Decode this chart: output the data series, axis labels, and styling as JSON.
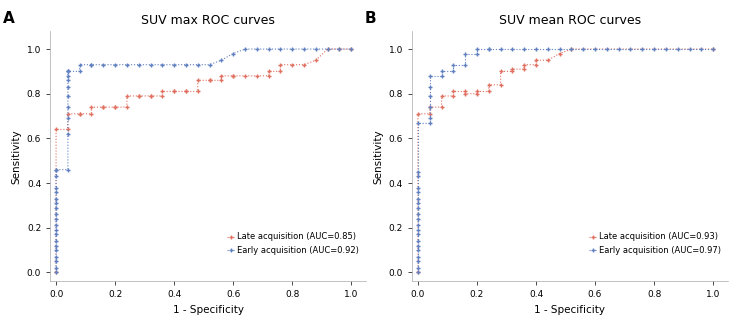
{
  "panel_A": {
    "title": "SUV max ROC curves",
    "label": "A",
    "late_label": "Late acquisition (AUC=0.85)",
    "early_label": "Early acquisition (AUC=0.92)",
    "late_color": "#E07060",
    "early_color": "#6080C0",
    "late_fpr": [
      0.0,
      0.0,
      0.04,
      0.04,
      0.08,
      0.08,
      0.12,
      0.12,
      0.16,
      0.16,
      0.2,
      0.2,
      0.24,
      0.24,
      0.28,
      0.28,
      0.32,
      0.32,
      0.36,
      0.36,
      0.4,
      0.4,
      0.44,
      0.44,
      0.48,
      0.48,
      0.52,
      0.52,
      0.56,
      0.56,
      0.6,
      0.6,
      0.64,
      0.68,
      0.72,
      0.72,
      0.76,
      0.76,
      0.8,
      0.84,
      0.88,
      0.92,
      0.96,
      1.0
    ],
    "late_tpr": [
      0.0,
      0.64,
      0.64,
      0.71,
      0.71,
      0.71,
      0.71,
      0.74,
      0.74,
      0.74,
      0.74,
      0.74,
      0.74,
      0.79,
      0.79,
      0.79,
      0.79,
      0.79,
      0.79,
      0.81,
      0.81,
      0.81,
      0.81,
      0.81,
      0.81,
      0.86,
      0.86,
      0.86,
      0.86,
      0.88,
      0.88,
      0.88,
      0.88,
      0.88,
      0.88,
      0.9,
      0.9,
      0.93,
      0.93,
      0.93,
      0.95,
      1.0,
      1.0,
      1.0
    ],
    "early_fpr": [
      0.0,
      0.0,
      0.0,
      0.0,
      0.0,
      0.0,
      0.0,
      0.0,
      0.0,
      0.0,
      0.0,
      0.0,
      0.0,
      0.0,
      0.0,
      0.0,
      0.0,
      0.0,
      0.0,
      0.0,
      0.04,
      0.04,
      0.04,
      0.04,
      0.04,
      0.04,
      0.04,
      0.04,
      0.04,
      0.04,
      0.04,
      0.08,
      0.08,
      0.12,
      0.12,
      0.16,
      0.2,
      0.24,
      0.28,
      0.32,
      0.36,
      0.4,
      0.44,
      0.48,
      0.52,
      0.56,
      0.6,
      0.64,
      0.68,
      0.72,
      0.76,
      0.8,
      0.84,
      0.88,
      0.92,
      0.96,
      1.0
    ],
    "early_tpr": [
      0.0,
      0.02,
      0.05,
      0.07,
      0.1,
      0.12,
      0.14,
      0.17,
      0.19,
      0.21,
      0.24,
      0.26,
      0.29,
      0.31,
      0.33,
      0.36,
      0.38,
      0.43,
      0.46,
      0.46,
      0.46,
      0.62,
      0.69,
      0.74,
      0.79,
      0.83,
      0.86,
      0.88,
      0.9,
      0.9,
      0.9,
      0.9,
      0.93,
      0.93,
      0.93,
      0.93,
      0.93,
      0.93,
      0.93,
      0.93,
      0.93,
      0.93,
      0.93,
      0.93,
      0.93,
      0.95,
      0.98,
      1.0,
      1.0,
      1.0,
      1.0,
      1.0,
      1.0,
      1.0,
      1.0,
      1.0,
      1.0
    ]
  },
  "panel_B": {
    "title": "SUV mean ROC curves",
    "label": "B",
    "late_label": "Late acquisition (AUC=0.93)",
    "early_label": "Early acquisition (AUC=0.97)",
    "late_color": "#E07060",
    "early_color": "#6080C0",
    "late_fpr": [
      0.0,
      0.0,
      0.04,
      0.04,
      0.08,
      0.08,
      0.12,
      0.12,
      0.16,
      0.16,
      0.2,
      0.2,
      0.24,
      0.24,
      0.28,
      0.28,
      0.32,
      0.32,
      0.36,
      0.36,
      0.4,
      0.4,
      0.44,
      0.48,
      0.52,
      1.0
    ],
    "late_tpr": [
      0.0,
      0.71,
      0.71,
      0.74,
      0.74,
      0.79,
      0.79,
      0.81,
      0.81,
      0.8,
      0.8,
      0.81,
      0.81,
      0.84,
      0.84,
      0.9,
      0.9,
      0.91,
      0.91,
      0.93,
      0.93,
      0.95,
      0.95,
      0.98,
      1.0,
      1.0
    ],
    "early_fpr": [
      0.0,
      0.0,
      0.0,
      0.0,
      0.0,
      0.0,
      0.0,
      0.0,
      0.0,
      0.0,
      0.0,
      0.0,
      0.0,
      0.0,
      0.0,
      0.0,
      0.0,
      0.0,
      0.0,
      0.0,
      0.04,
      0.04,
      0.04,
      0.04,
      0.04,
      0.04,
      0.08,
      0.08,
      0.12,
      0.12,
      0.16,
      0.16,
      0.2,
      0.2,
      0.24,
      0.24,
      0.28,
      0.32,
      0.36,
      0.4,
      0.44,
      0.48,
      0.52,
      0.56,
      0.6,
      0.64,
      0.68,
      0.72,
      0.76,
      0.8,
      0.84,
      0.88,
      0.92,
      0.96,
      1.0
    ],
    "early_tpr": [
      0.0,
      0.02,
      0.05,
      0.07,
      0.1,
      0.12,
      0.14,
      0.17,
      0.19,
      0.21,
      0.24,
      0.26,
      0.29,
      0.31,
      0.33,
      0.36,
      0.38,
      0.43,
      0.45,
      0.67,
      0.67,
      0.69,
      0.74,
      0.79,
      0.83,
      0.88,
      0.88,
      0.9,
      0.9,
      0.93,
      0.93,
      0.98,
      0.98,
      1.0,
      1.0,
      1.0,
      1.0,
      1.0,
      1.0,
      1.0,
      1.0,
      1.0,
      1.0,
      1.0,
      1.0,
      1.0,
      1.0,
      1.0,
      1.0,
      1.0,
      1.0,
      1.0,
      1.0,
      1.0,
      1.0
    ]
  },
  "xlabel": "1 - Specificity",
  "ylabel": "Sensitivity",
  "xticks": [
    0.0,
    0.2,
    0.4,
    0.6,
    0.8,
    1.0
  ],
  "yticks": [
    0.0,
    0.2,
    0.4,
    0.6,
    0.8,
    1.0
  ],
  "xlim": [
    -0.02,
    1.05
  ],
  "ylim": [
    -0.04,
    1.08
  ],
  "bg_color": "#FFFFFF",
  "marker": "+",
  "markersize": 3.5,
  "linestyle": ":",
  "linewidth": 0.8
}
